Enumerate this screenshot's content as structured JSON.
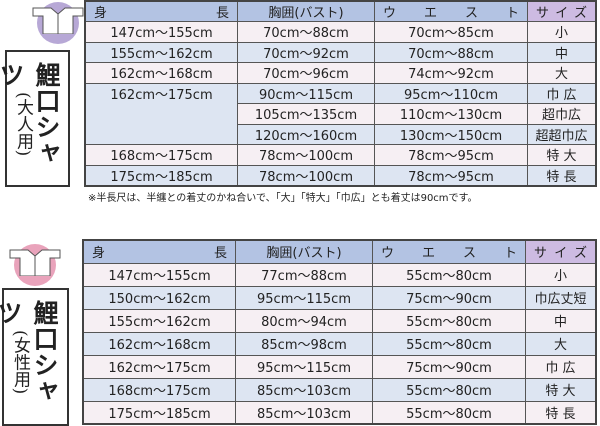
{
  "headers": {
    "height": "身　　　長",
    "bust": "胸囲(バスト)",
    "waist": "ウエスト",
    "size": "サイズ"
  },
  "men": {
    "title": "鯉口シャツ",
    "subtitle": "(大人用)",
    "icon_color": "#b7a8d6",
    "rows": [
      {
        "height": "147cm～155cm",
        "bust": "70cm～88cm",
        "waist": "70cm～85cm",
        "size": "小"
      },
      {
        "height": "155cm～162cm",
        "bust": "70cm～92cm",
        "waist": "70cm～88cm",
        "size": "中"
      },
      {
        "height": "162cm～168cm",
        "bust": "70cm～96cm",
        "waist": "74cm～92cm",
        "size": "大"
      },
      {
        "height": "162cm～175cm",
        "bust": "90cm～115cm",
        "waist": "95cm～110cm",
        "size": "巾 広"
      },
      {
        "bust": "105cm～135cm",
        "waist": "110cm～130cm",
        "size": "超巾広"
      },
      {
        "bust": "120cm～160cm",
        "waist": "130cm～150cm",
        "size": "超超巾広"
      },
      {
        "height": "168cm～175cm",
        "bust": "78cm～100cm",
        "waist": "78cm～95cm",
        "size": "特 大"
      },
      {
        "height": "175cm～185cm",
        "bust": "78cm～100cm",
        "waist": "78cm～95cm",
        "size": "特 長"
      }
    ],
    "note": "※半長尺は、半纏との着丈のかね合いで、「大」「特大」「巾広」とも着丈は90cmです。"
  },
  "women": {
    "title": "鯉口シャツ",
    "subtitle": "(女性用)",
    "icon_color": "#e9a3bb",
    "rows": [
      {
        "height": "147cm～155cm",
        "bust": "77cm～88cm",
        "waist": "55cm～80cm",
        "size": "小"
      },
      {
        "height": "150cm～162cm",
        "bust": "95cm～115cm",
        "waist": "75cm～90cm",
        "size": "巾広丈短"
      },
      {
        "height": "155cm～162cm",
        "bust": "80cm～94cm",
        "waist": "55cm～80cm",
        "size": "中"
      },
      {
        "height": "162cm～168cm",
        "bust": "85cm～98cm",
        "waist": "55cm～80cm",
        "size": "大"
      },
      {
        "height": "162cm～175cm",
        "bust": "95cm～115cm",
        "waist": "75cm～90cm",
        "size": "巾 広"
      },
      {
        "height": "168cm～175cm",
        "bust": "85cm～103cm",
        "waist": "55cm～80cm",
        "size": "特 大"
      },
      {
        "height": "175cm～185cm",
        "bust": "85cm～103cm",
        "waist": "55cm～80cm",
        "size": "特 長"
      }
    ]
  }
}
